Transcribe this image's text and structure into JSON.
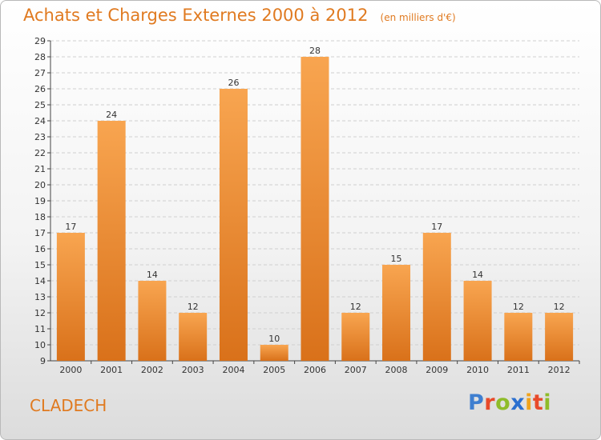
{
  "chart_data": {
    "type": "bar",
    "title": "Achats et Charges Externes 2000 à 2012",
    "unit_note": "(en milliers d'€)",
    "categories": [
      "2000",
      "2001",
      "2002",
      "2003",
      "2004",
      "2005",
      "2006",
      "2007",
      "2008",
      "2009",
      "2010",
      "2011",
      "2012"
    ],
    "values": [
      17,
      24,
      14,
      12,
      26,
      10,
      28,
      12,
      15,
      17,
      14,
      12,
      12
    ],
    "xlabel": "",
    "ylabel": "",
    "ylim": [
      9,
      29
    ],
    "yticks": [
      "9",
      "10",
      "11",
      "12",
      "13",
      "14",
      "15",
      "16",
      "17",
      "18",
      "19",
      "20",
      "21",
      "22",
      "23",
      "24",
      "25",
      "26",
      "27",
      "28",
      "29"
    ],
    "grid": "horizontal dashed",
    "bar_color_top": "#f8a550",
    "bar_color_bottom": "#d9711a"
  },
  "footer": {
    "commune": "CLADECH",
    "logo": {
      "letters": [
        "P",
        "r",
        "o",
        "x",
        "i",
        "t",
        "i"
      ],
      "colors": [
        "#3f7fd0",
        "#e84a2a",
        "#8fbc2a",
        "#2b6fcf",
        "#f0a31c",
        "#e84a2a",
        "#8fbc2a"
      ]
    }
  },
  "colors": {
    "accent": "#e07a20",
    "grid": "#cfcfcf",
    "axis": "#444444"
  }
}
